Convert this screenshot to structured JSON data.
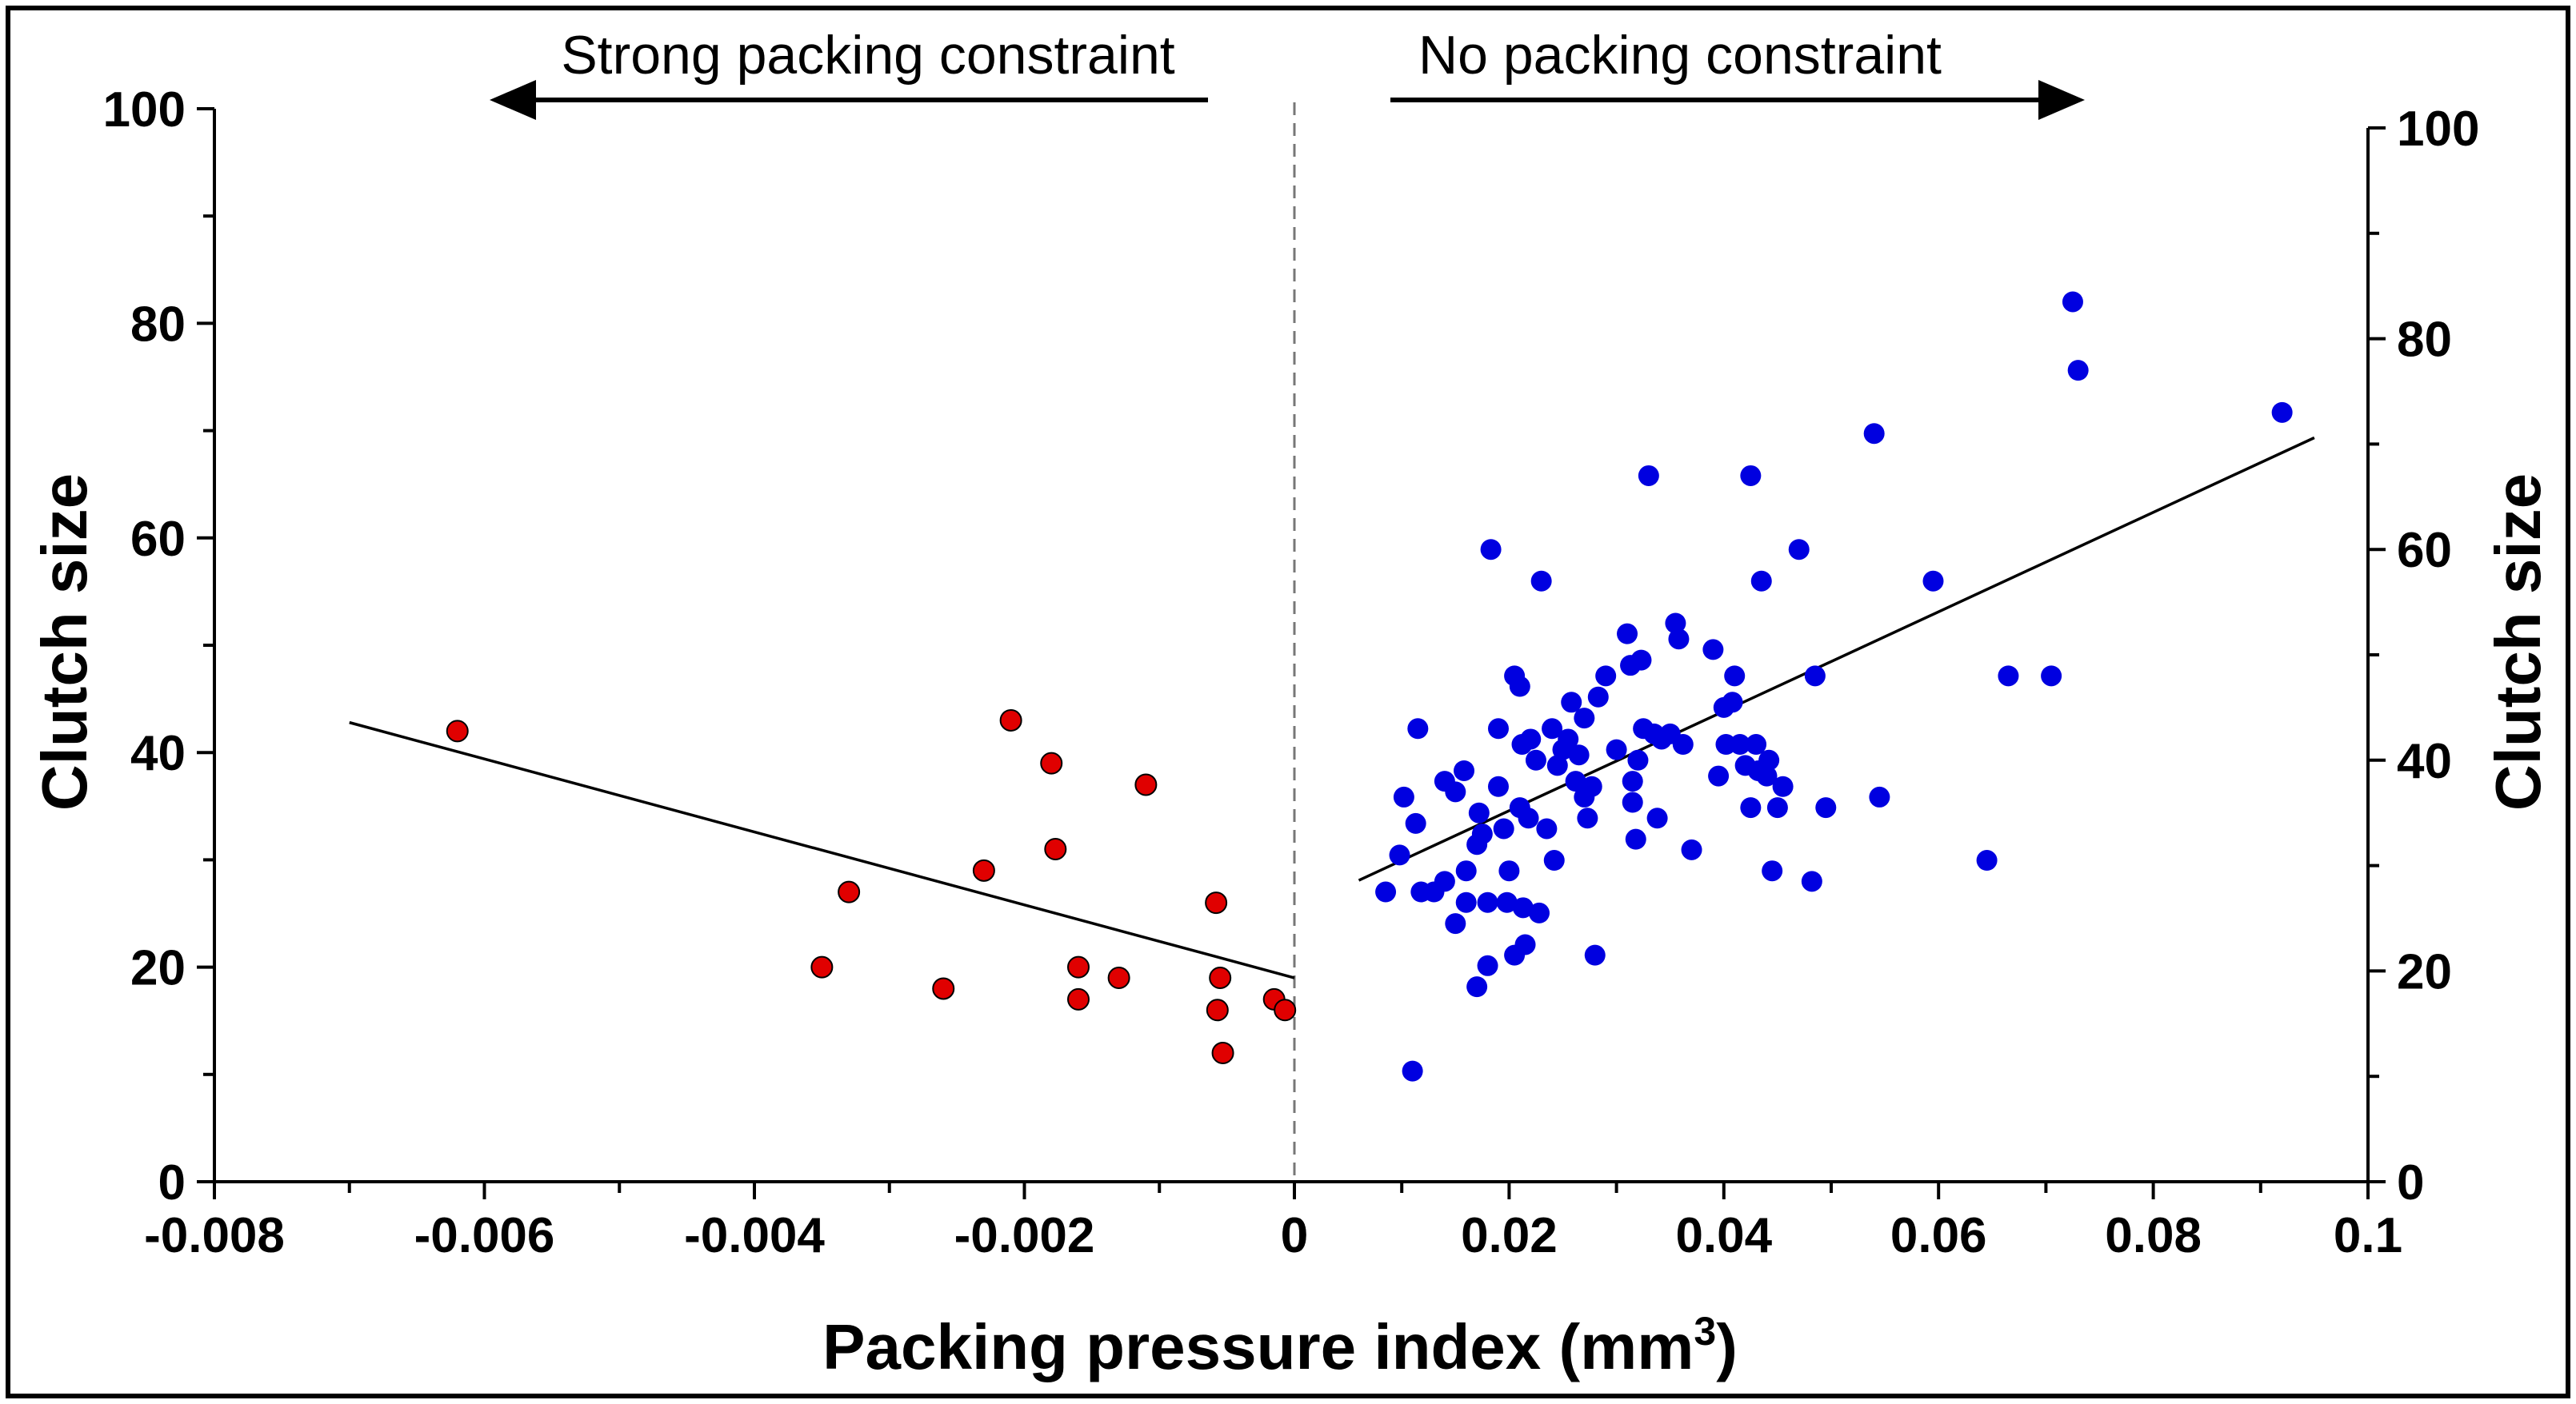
{
  "chart_data": {
    "type": "scatter",
    "title": "",
    "xlabel_main": "Packing pressure index (mm",
    "xlabel_sup": "3",
    "xlabel_close": ")",
    "ylabel_left": "Clutch size",
    "ylabel_right": "Clutch size",
    "annotations": {
      "left": "Strong packing constraint",
      "right": "No packing constraint"
    },
    "left_x_ticks": [
      "-0.008",
      "-0.006",
      "-0.004",
      "-0.002",
      "0"
    ],
    "right_x_ticks": [
      "0",
      "0.02",
      "0.04",
      "0.06",
      "0.08",
      "0.1"
    ],
    "left_y_ticks": [
      "0",
      "20",
      "40",
      "60",
      "80",
      "100"
    ],
    "right_y_ticks": [
      "0",
      "20",
      "40",
      "60",
      "80",
      "100"
    ],
    "left_xlim": [
      -0.008,
      0
    ],
    "right_xlim": [
      0,
      0.1
    ],
    "ylim": [
      0,
      100
    ],
    "colors": {
      "left_points": "#e00000",
      "right_points": "#0000e0"
    },
    "series": [
      {
        "side": "left",
        "points": [
          [
            -0.0062,
            42
          ],
          [
            -0.0035,
            20
          ],
          [
            -0.0033,
            27
          ],
          [
            -0.0026,
            18
          ],
          [
            -0.0023,
            29
          ],
          [
            -0.0021,
            43
          ],
          [
            -0.0018,
            39
          ],
          [
            -0.00177,
            31
          ],
          [
            -0.0016,
            20
          ],
          [
            -0.0016,
            17
          ],
          [
            -0.0013,
            19
          ],
          [
            -0.0011,
            37
          ],
          [
            -0.00058,
            26
          ],
          [
            -0.00055,
            19
          ],
          [
            -0.00057,
            16
          ],
          [
            -0.00053,
            12
          ],
          [
            -0.00015,
            17
          ],
          [
            -7e-05,
            16
          ]
        ],
        "fit": [
          [
            -0.007,
            42.8
          ],
          [
            0,
            19
          ]
        ]
      },
      {
        "side": "right",
        "points": [
          [
            0.0085,
            27.5
          ],
          [
            0.0098,
            31
          ],
          [
            0.0102,
            36.5
          ],
          [
            0.011,
            10.5
          ],
          [
            0.0113,
            34
          ],
          [
            0.0115,
            43
          ],
          [
            0.0118,
            27.5
          ],
          [
            0.013,
            27.5
          ],
          [
            0.014,
            28.5
          ],
          [
            0.014,
            38
          ],
          [
            0.015,
            37
          ],
          [
            0.015,
            24.5
          ],
          [
            0.0158,
            39
          ],
          [
            0.016,
            29.5
          ],
          [
            0.016,
            26.5
          ],
          [
            0.017,
            18.5
          ],
          [
            0.017,
            32
          ],
          [
            0.0172,
            35
          ],
          [
            0.0175,
            33
          ],
          [
            0.018,
            26.5
          ],
          [
            0.018,
            20.5
          ],
          [
            0.0183,
            60
          ],
          [
            0.019,
            43
          ],
          [
            0.019,
            37.5
          ],
          [
            0.0195,
            33.5
          ],
          [
            0.0198,
            26.5
          ],
          [
            0.02,
            29.5
          ],
          [
            0.0205,
            21.5
          ],
          [
            0.0205,
            48
          ],
          [
            0.021,
            47
          ],
          [
            0.021,
            35.5
          ],
          [
            0.0212,
            41.5
          ],
          [
            0.0213,
            26
          ],
          [
            0.0215,
            22.5
          ],
          [
            0.0218,
            34.5
          ],
          [
            0.022,
            42
          ],
          [
            0.0225,
            40
          ],
          [
            0.0228,
            25.5
          ],
          [
            0.023,
            57
          ],
          [
            0.0235,
            33.5
          ],
          [
            0.024,
            43
          ],
          [
            0.0242,
            30.5
          ],
          [
            0.0245,
            39.5
          ],
          [
            0.025,
            41
          ],
          [
            0.0255,
            42
          ],
          [
            0.0258,
            45.5
          ],
          [
            0.0262,
            38
          ],
          [
            0.0265,
            40.5
          ],
          [
            0.027,
            44
          ],
          [
            0.027,
            36.5
          ],
          [
            0.0273,
            34.5
          ],
          [
            0.0277,
            37.5
          ],
          [
            0.028,
            21.5
          ],
          [
            0.0283,
            46
          ],
          [
            0.029,
            48
          ],
          [
            0.03,
            41
          ],
          [
            0.031,
            52
          ],
          [
            0.0313,
            49
          ],
          [
            0.0315,
            38
          ],
          [
            0.0315,
            36
          ],
          [
            0.0318,
            32.5
          ],
          [
            0.032,
            40
          ],
          [
            0.0323,
            49.5
          ],
          [
            0.0325,
            43
          ],
          [
            0.033,
            67
          ],
          [
            0.0335,
            42.5
          ],
          [
            0.0338,
            34.5
          ],
          [
            0.0342,
            42
          ],
          [
            0.035,
            42.5
          ],
          [
            0.0355,
            53
          ],
          [
            0.0358,
            51.5
          ],
          [
            0.0362,
            41.5
          ],
          [
            0.037,
            31.5
          ],
          [
            0.039,
            50.5
          ],
          [
            0.0395,
            38.5
          ],
          [
            0.04,
            45
          ],
          [
            0.0402,
            41.5
          ],
          [
            0.0408,
            45.5
          ],
          [
            0.041,
            48
          ],
          [
            0.0415,
            41.5
          ],
          [
            0.042,
            39.5
          ],
          [
            0.0425,
            67
          ],
          [
            0.0425,
            35.5
          ],
          [
            0.043,
            41.5
          ],
          [
            0.0432,
            39
          ],
          [
            0.0435,
            57
          ],
          [
            0.044,
            38.5
          ],
          [
            0.0442,
            40
          ],
          [
            0.0445,
            29.5
          ],
          [
            0.045,
            35.5
          ],
          [
            0.0455,
            37.5
          ],
          [
            0.047,
            60
          ],
          [
            0.0482,
            28.5
          ],
          [
            0.0485,
            48
          ],
          [
            0.0495,
            35.5
          ],
          [
            0.054,
            71
          ],
          [
            0.0545,
            36.5
          ],
          [
            0.0595,
            57
          ],
          [
            0.0645,
            30.5
          ],
          [
            0.0665,
            48
          ],
          [
            0.0705,
            48
          ],
          [
            0.0725,
            83.5
          ],
          [
            0.073,
            77
          ],
          [
            0.092,
            73
          ]
        ],
        "fit": [
          [
            0.006,
            28.6
          ],
          [
            0.095,
            70.6
          ]
        ]
      }
    ]
  }
}
